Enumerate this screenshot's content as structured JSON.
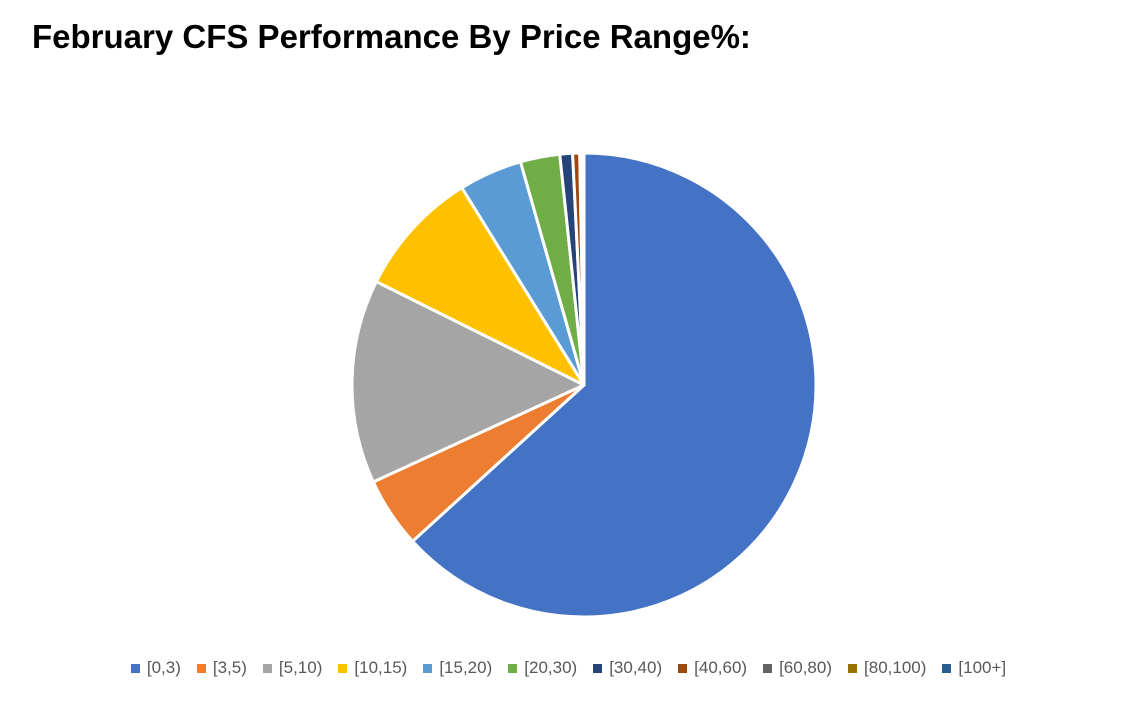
{
  "chart_data": {
    "type": "pie",
    "title": "February CFS Performance By Price Range%:",
    "categories": [
      "[0,3)",
      "[3,5)",
      "[5,10)",
      "[10,15)",
      "[15,20)",
      "[20,30)",
      "[30,40)",
      "[40,60)",
      "[60,80)",
      "[80,100)",
      "[100+]"
    ],
    "values": [
      64.5,
      5.0,
      14.5,
      9.0,
      4.5,
      2.8,
      0.9,
      0.5,
      0.1,
      0.1,
      0.1
    ],
    "colors": [
      "#4472C4",
      "#ED7D31",
      "#A5A5A5",
      "#FFC000",
      "#5B9BD5",
      "#70AD47",
      "#264478",
      "#9E480E",
      "#636363",
      "#997300",
      "#255E91"
    ],
    "legend_position": "bottom"
  }
}
